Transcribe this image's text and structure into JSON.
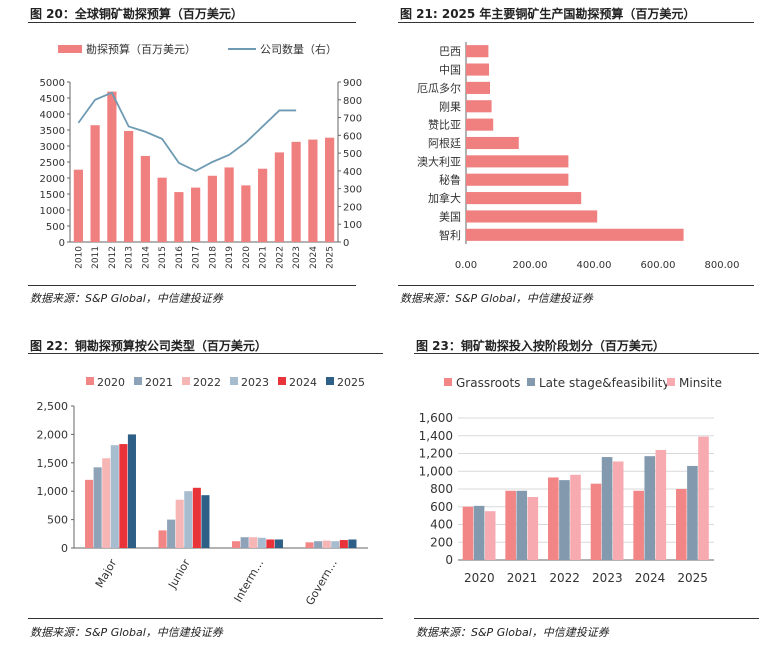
{
  "colors": {
    "bar_red": "#F08080",
    "line_blue": "#6E9BB3",
    "c2020": "#F28585",
    "c2021": "#8EA3B8",
    "c2022": "#F7B6B6",
    "c2023": "#A7BCCF",
    "c2024": "#E8333B",
    "c2025": "#2E5F86",
    "grassroots": "#F28585",
    "late": "#8399AD",
    "minsite": "#F7AAB0"
  },
  "fig20": {
    "title": "图 20：全球铜矿勘探预算（百万美元）",
    "source": "数据来源：S&P Global，中信建投证券"
  },
  "fig21": {
    "title": "图 21: 2025 年主要铜矿生产国勘探预算（百万美元）",
    "source": "数据来源：S&P Global，中信建投证券"
  },
  "fig22": {
    "title": "图 22：铜勘探预算按公司类型（百万美元）",
    "source": "数据来源：S&P Global，中信建投证券"
  },
  "fig23": {
    "title": "图 23：铜矿勘探投入按阶段划分（百万美元）",
    "source": "数据来源：S&P Global，中信建投证券"
  },
  "chart_data": [
    {
      "type": "bar",
      "categories": [
        "2010",
        "2011",
        "2012",
        "2013",
        "2014",
        "2015",
        "2016",
        "2017",
        "2018",
        "2019",
        "2020",
        "2021",
        "2022",
        "2023",
        "2024",
        "2025"
      ],
      "series": [
        {
          "name": "勘探预算（百万美元）",
          "type": "bar",
          "axis": "left",
          "values": [
            2260,
            3650,
            4700,
            3470,
            2690,
            2010,
            1560,
            1700,
            2070,
            2330,
            1770,
            2290,
            2800,
            3130,
            3200,
            3260
          ]
        },
        {
          "name": "公司数量（右）",
          "type": "line",
          "axis": "right",
          "values": [
            670,
            800,
            840,
            650,
            620,
            580,
            445,
            400,
            450,
            490,
            560,
            650,
            740,
            740,
            null,
            null
          ]
        }
      ],
      "ylim": [
        0,
        5000
      ],
      "yticks": [
        0,
        500,
        1000,
        1500,
        2000,
        2500,
        3000,
        3500,
        4000,
        4500,
        5000
      ],
      "y2lim": [
        0,
        900
      ],
      "y2ticks": [
        0,
        100,
        200,
        300,
        400,
        500,
        600,
        700,
        800,
        900
      ],
      "legend": "top"
    },
    {
      "type": "bar",
      "orientation": "horizontal",
      "categories": [
        "巴西",
        "中国",
        "厄瓜多尔",
        "刚果",
        "赞比亚",
        "阿根廷",
        "澳大利亚",
        "秘鲁",
        "加拿大",
        "美国",
        "智利"
      ],
      "values": [
        70,
        72,
        75,
        80,
        85,
        165,
        320,
        320,
        360,
        410,
        680
      ],
      "xlim": [
        0,
        800
      ],
      "xticks": [
        "0.00",
        "200.00",
        "400.00",
        "600.00",
        "800.00"
      ],
      "grid": false
    },
    {
      "type": "bar",
      "categories": [
        "Major",
        "Junior",
        "Interm…",
        "Govern…"
      ],
      "series": [
        {
          "name": "2020",
          "values": [
            1200,
            310,
            120,
            100
          ]
        },
        {
          "name": "2021",
          "values": [
            1420,
            500,
            190,
            120
          ]
        },
        {
          "name": "2022",
          "values": [
            1580,
            850,
            190,
            130
          ]
        },
        {
          "name": "2023",
          "values": [
            1810,
            1000,
            180,
            120
          ]
        },
        {
          "name": "2024",
          "values": [
            1830,
            1060,
            150,
            140
          ]
        },
        {
          "name": "2025",
          "values": [
            2000,
            930,
            150,
            150
          ]
        }
      ],
      "ylim": [
        0,
        2500
      ],
      "yticks": [
        "0",
        "500",
        "1,000",
        "1,500",
        "2,000",
        "2,500"
      ],
      "legend": "top"
    },
    {
      "type": "bar",
      "categories": [
        "2020",
        "2021",
        "2022",
        "2023",
        "2024",
        "2025"
      ],
      "series": [
        {
          "name": "Grassroots",
          "values": [
            600,
            780,
            930,
            860,
            780,
            800
          ]
        },
        {
          "name": "Late stage&feasibility",
          "values": [
            610,
            780,
            900,
            1160,
            1170,
            1060
          ]
        },
        {
          "name": "Minsite",
          "values": [
            550,
            710,
            960,
            1110,
            1240,
            1390
          ]
        }
      ],
      "ylim": [
        0,
        1600
      ],
      "yticks": [
        "0",
        "200",
        "400",
        "600",
        "800",
        "1,000",
        "1,200",
        "1,400",
        "1,600"
      ],
      "grid": true,
      "legend": "top"
    }
  ]
}
